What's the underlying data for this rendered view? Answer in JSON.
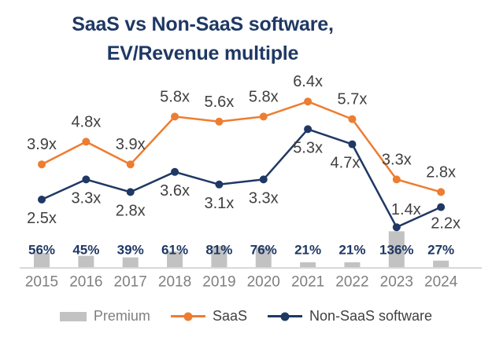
{
  "title": {
    "line1": "SaaS vs Non-SaaS software,",
    "line2": "EV/Revenue multiple"
  },
  "chart_data": {
    "type": "combo",
    "categories": [
      "2015",
      "2016",
      "2017",
      "2018",
      "2019",
      "2020",
      "2021",
      "2022",
      "2023",
      "2024"
    ],
    "series": [
      {
        "name": "Premium",
        "chart_type": "bar",
        "unit": "%",
        "color": "#C2C2C2",
        "values": [
          56,
          45,
          39,
          61,
          81,
          76,
          21,
          21,
          136,
          27
        ],
        "labels": [
          "56%",
          "45%",
          "39%",
          "61%",
          "81%",
          "76%",
          "21%",
          "21%",
          "136%",
          "27%"
        ]
      },
      {
        "name": "SaaS",
        "chart_type": "line",
        "unit": "x",
        "color": "#ED7D31",
        "values": [
          3.9,
          4.8,
          3.9,
          5.8,
          5.6,
          5.8,
          6.4,
          5.7,
          3.3,
          2.8
        ],
        "labels": [
          "3.9x",
          "4.8x",
          "3.9x",
          "5.8x",
          "5.6x",
          "5.8x",
          "6.4x",
          "5.7x",
          "3.3x",
          "2.8x"
        ]
      },
      {
        "name": "Non-SaaS software",
        "chart_type": "line",
        "unit": "x",
        "color": "#1F3864",
        "values": [
          2.5,
          3.3,
          2.8,
          3.6,
          3.1,
          3.3,
          5.3,
          4.7,
          1.4,
          2.2
        ],
        "labels": [
          "2.5x",
          "3.3x",
          "2.8x",
          "3.6x",
          "3.1x",
          "3.3x",
          "5.3x",
          "4.7x",
          "1.4x",
          "2.2x"
        ]
      }
    ],
    "xlabel": "",
    "ylabel": "",
    "grid": false,
    "value_axis_visible": false,
    "legend_position": "bottom"
  },
  "legend": {
    "premium_label": "Premium",
    "saas_label": "SaaS",
    "non_saas_label": "Non-SaaS software"
  },
  "colors": {
    "title": "#1F3864",
    "data_label": "#404040",
    "year_label": "#7F7F7F",
    "pct_label": "#1F3864",
    "axis_line": "#D8D8D8",
    "background": "#FFFFFF",
    "legend_text": "#404040",
    "legend_premium_text": "#7F7F7F"
  }
}
